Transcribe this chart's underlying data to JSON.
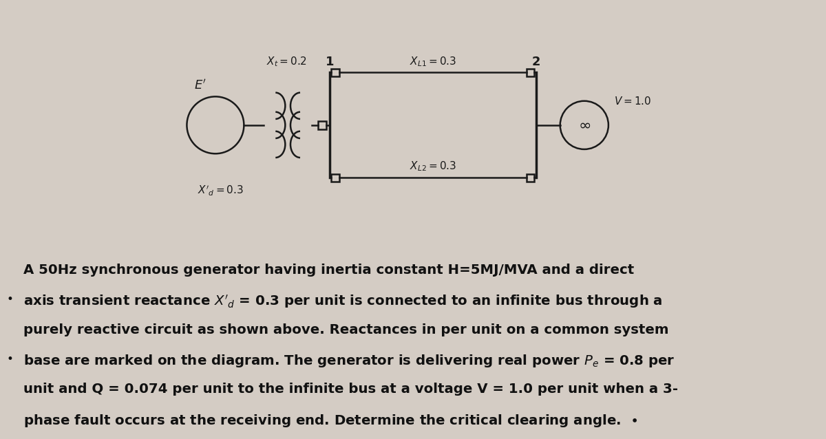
{
  "bg_color": "#d4ccc4",
  "text_color": "#111111",
  "diagram_color": "#1a1a1a",
  "line1": "A 50Hz synchronous generator having inertia constant H=5MJ/MVA and a direct",
  "line2": "axis transient reactance X’_d = 0.3 per unit is connected to an infinite bus through a",
  "line3": "purely reactive circuit as shown above. Reactances in per unit on a common system",
  "line4": "base are marked on the diagram. The generator is delivering real power P_e = 0.8 per",
  "line5": "unit and Q = 0.074 per unit to the infinite bus at a voltage V = 1.0 per unit when a 3-",
  "line6": "phase fault occurs at the receiving end. Determine the critical clearing angle."
}
